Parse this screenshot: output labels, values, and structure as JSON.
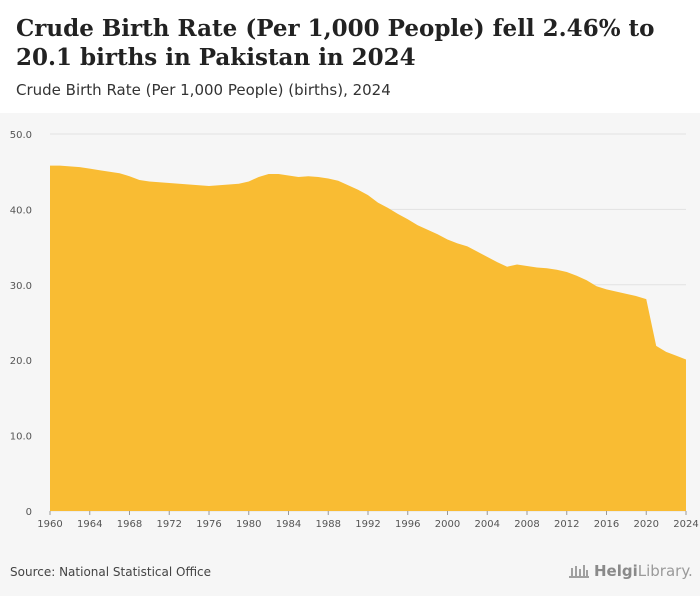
{
  "header": {
    "title": "Crude Birth Rate (Per 1,000 People) fell 2.46% to 20.1 births in Pakistan in 2024",
    "subtitle": "Crude Birth Rate (Per 1,000 People) (births), 2024"
  },
  "footer": {
    "source": "Source: National Statistical Office",
    "logo_bold": "Helgi",
    "logo_rest": "Library."
  },
  "colors": {
    "fill": "#f9bc33",
    "grid": "#e2e2e2",
    "panel": "#f6f6f6"
  },
  "chart_data": {
    "type": "area",
    "title": "Crude Birth Rate (Per 1,000 People) fell 2.46% to 20.1 births in Pakistan in 2024",
    "subtitle": "Crude Birth Rate (Per 1,000 People) (births), 2024",
    "xlabel": "",
    "ylabel": "",
    "ylim": [
      0,
      50
    ],
    "yticks": [
      "0",
      "10.0",
      "20.0",
      "30.0",
      "40.0",
      "50.0"
    ],
    "xticks": [
      "1960",
      "1964",
      "1968",
      "1972",
      "1976",
      "1980",
      "1984",
      "1988",
      "1992",
      "1996",
      "2000",
      "2004",
      "2008",
      "2012",
      "2016",
      "2020",
      "2024"
    ],
    "grid": true,
    "x": [
      1960,
      1961,
      1962,
      1963,
      1964,
      1965,
      1966,
      1967,
      1968,
      1969,
      1970,
      1971,
      1972,
      1973,
      1974,
      1975,
      1976,
      1977,
      1978,
      1979,
      1980,
      1981,
      1982,
      1983,
      1984,
      1985,
      1986,
      1987,
      1988,
      1989,
      1990,
      1991,
      1992,
      1993,
      1994,
      1995,
      1996,
      1997,
      1998,
      1999,
      2000,
      2001,
      2002,
      2003,
      2004,
      2005,
      2006,
      2007,
      2008,
      2009,
      2010,
      2011,
      2012,
      2013,
      2014,
      2015,
      2016,
      2017,
      2018,
      2019,
      2020,
      2021,
      2022,
      2023,
      2024
    ],
    "values": [
      45.8,
      45.8,
      45.7,
      45.6,
      45.4,
      45.2,
      45.0,
      44.8,
      44.4,
      43.9,
      43.7,
      43.6,
      43.5,
      43.4,
      43.3,
      43.2,
      43.1,
      43.2,
      43.3,
      43.4,
      43.7,
      44.3,
      44.7,
      44.7,
      44.5,
      44.3,
      44.4,
      44.3,
      44.1,
      43.8,
      43.2,
      42.6,
      41.9,
      40.9,
      40.2,
      39.4,
      38.7,
      37.9,
      37.3,
      36.7,
      36.0,
      35.5,
      35.1,
      34.4,
      33.7,
      33.0,
      32.4,
      32.7,
      32.5,
      32.3,
      32.2,
      32.0,
      31.7,
      31.2,
      30.6,
      29.8,
      29.4,
      29.1,
      28.8,
      28.5,
      28.1,
      21.9,
      21.1,
      20.6,
      20.1
    ]
  }
}
